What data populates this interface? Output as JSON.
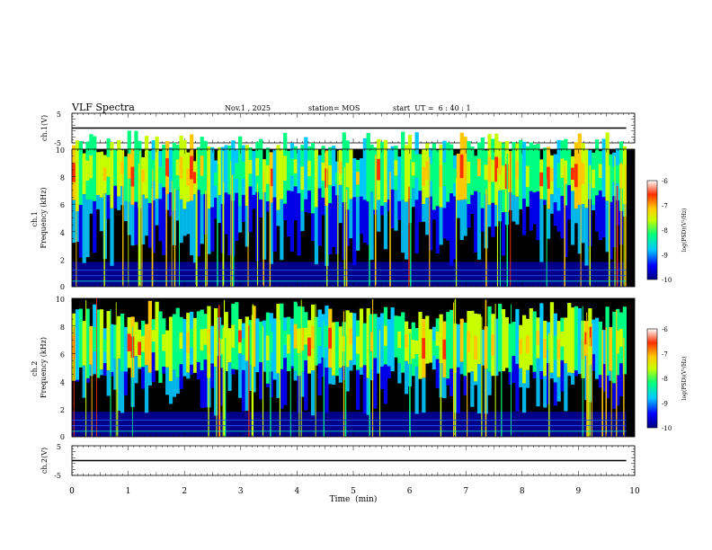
{
  "chart_data": {
    "type": "heatmap",
    "title": "VLF Spectra",
    "date": "Nov.1 , 2025",
    "station": "station= MOS",
    "start_ut": "start  UT =  6 : 40 : 1",
    "xlabel": "Time  (min)",
    "xlim": [
      0,
      10
    ],
    "x_ticks": [
      "0",
      "1",
      "2",
      "3",
      "4",
      "5",
      "6",
      "7",
      "8",
      "9",
      "10"
    ],
    "panels": [
      {
        "id": "ch1-waveform",
        "type": "line",
        "ylabel": "ch.1(V)",
        "ylim": [
          -5,
          5
        ],
        "y_ticks": [
          "5",
          "-5"
        ],
        "baseline": 0,
        "trace_end_min": 9.85
      },
      {
        "id": "ch1-spectrogram",
        "type": "heatmap",
        "ylabel": "ch.1\nFrequency (kHz)",
        "ylim": [
          0,
          10
        ],
        "y_ticks": [
          "10",
          "8",
          "6",
          "4",
          "2",
          "0"
        ],
        "band_center_khz": 8.3,
        "data_end_min": 9.85,
        "colorbar": {
          "label": "log(PSD)(V²/Hz)",
          "range": [
            -10,
            -6
          ],
          "ticks": [
            "-6",
            "-7",
            "-8",
            "-9",
            "-10"
          ]
        }
      },
      {
        "id": "ch2-spectrogram",
        "type": "heatmap",
        "ylabel": "ch.2\nFrequency (kHz)",
        "ylim": [
          0,
          10
        ],
        "y_ticks": [
          "10",
          "8",
          "6",
          "4",
          "2",
          "0"
        ],
        "band_center_khz": 6.8,
        "data_end_min": 9.85,
        "colorbar": {
          "label": "log(PSD)(V²/Hz)",
          "range": [
            -10,
            -6
          ],
          "ticks": [
            "-6",
            "-7",
            "-8",
            "-9",
            "-10"
          ]
        }
      },
      {
        "id": "ch2-waveform",
        "type": "line",
        "ylabel": "ch.2(V)",
        "ylim": [
          -5,
          5
        ],
        "y_ticks": [
          "5",
          "-5"
        ],
        "baseline": 0,
        "trace_end_min": 9.85
      }
    ],
    "colormap": [
      "#000080",
      "#0000ff",
      "#00c8ff",
      "#00ff80",
      "#c8ff00",
      "#ffc800",
      "#ff3000",
      "#ffffff"
    ]
  }
}
